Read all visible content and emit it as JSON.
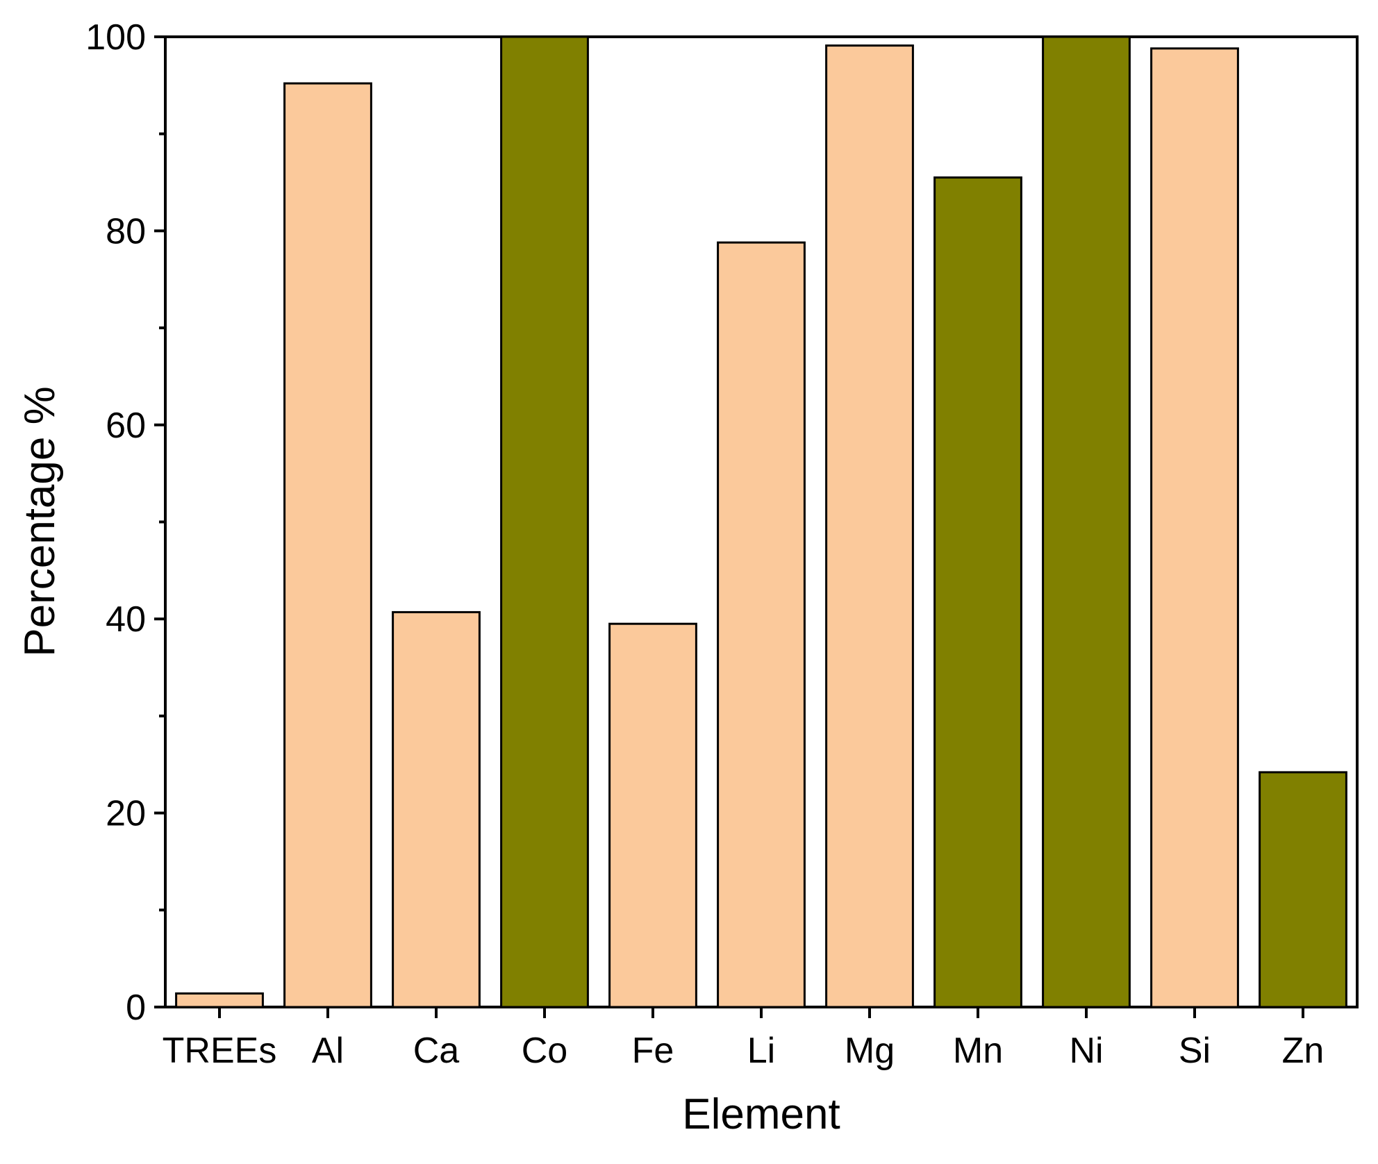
{
  "chart_data": {
    "type": "bar",
    "title": "",
    "xlabel": "Element",
    "ylabel": "Percentage %",
    "categories": [
      "TREEs",
      "Al",
      "Ca",
      "Co",
      "Fe",
      "Li",
      "Mg",
      "Mn",
      "Ni",
      "Si",
      "Zn"
    ],
    "values": [
      1.4,
      95.2,
      40.7,
      100.0,
      39.5,
      78.8,
      99.1,
      85.5,
      100.0,
      98.8,
      24.2
    ],
    "bar_groups": [
      "light",
      "light",
      "light",
      "dark",
      "light",
      "light",
      "light",
      "dark",
      "dark",
      "light",
      "dark"
    ],
    "colors": {
      "light": "#fbc99b",
      "dark": "#808000",
      "edge": "#000000"
    },
    "ylim": [
      0,
      100
    ],
    "yticks": [
      0,
      20,
      40,
      60,
      80,
      100
    ],
    "yticks_minor": [
      10,
      30,
      50,
      70,
      90
    ],
    "grid": false,
    "legend": "none"
  }
}
